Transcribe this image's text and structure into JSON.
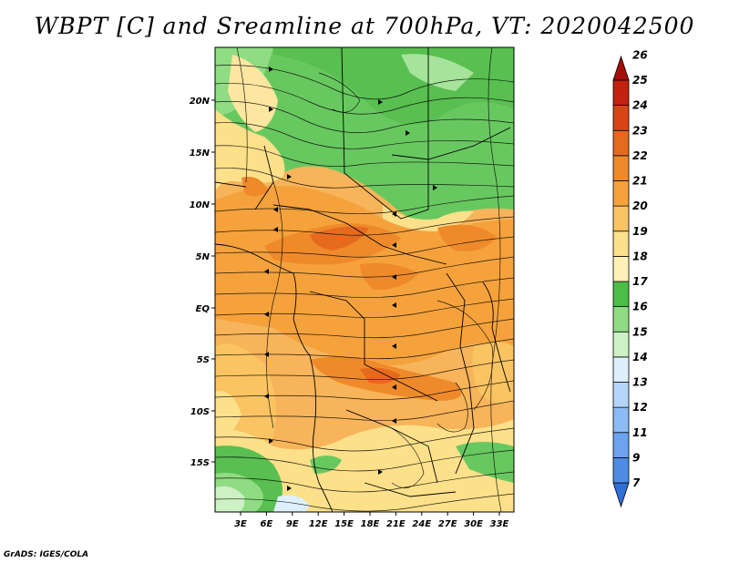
{
  "title": "WBPT [C] and Sreamline at 700hPa, VT: 2020042500",
  "credit": "GrADS: IGES/COLA",
  "map": {
    "lon_ticks": [
      "3E",
      "6E",
      "9E",
      "12E",
      "15E",
      "18E",
      "21E",
      "24E",
      "27E",
      "30E",
      "33E"
    ],
    "lat_ticks": [
      "20N",
      "15N",
      "10N",
      "5N",
      "EQ",
      "5S",
      "10S",
      "15S"
    ]
  },
  "colorbar": {
    "levels": [
      "7",
      "9",
      "11",
      "12",
      "13",
      "14",
      "15",
      "16",
      "17",
      "18",
      "19",
      "20",
      "21",
      "22",
      "23",
      "24",
      "25",
      "26"
    ],
    "colors": [
      "#2f6fd6",
      "#4e8ce6",
      "#6ba3ef",
      "#8cbcf5",
      "#b5d6fa",
      "#ddf0fb",
      "#cdf0c4",
      "#8fdc82",
      "#4cbd47",
      "#fff1b5",
      "#fde08a",
      "#fbc463",
      "#f5a23c",
      "#ef8a2a",
      "#e66a1e",
      "#d94416",
      "#c4210f",
      "#a50f0a"
    ]
  }
}
